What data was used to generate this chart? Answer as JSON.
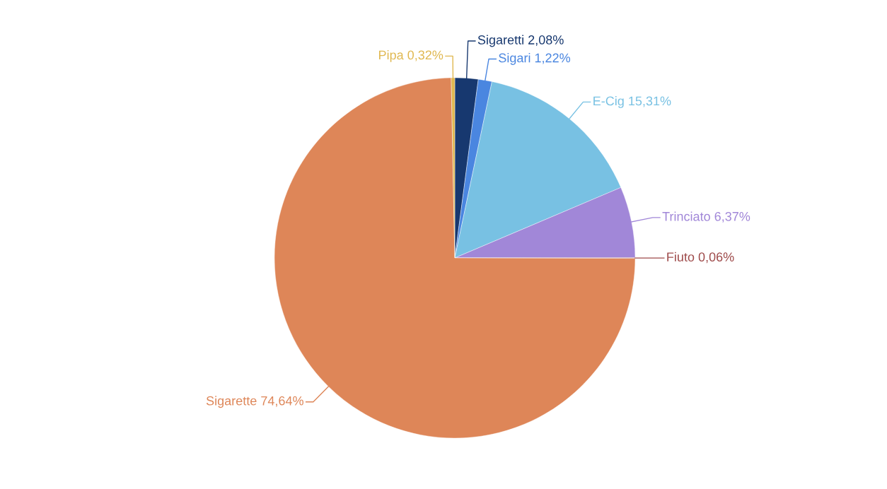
{
  "chart_data": {
    "type": "pie",
    "categories": [
      "Sigaretti",
      "Sigari",
      "E-Cig",
      "Trinciato",
      "Fiuto",
      "Sigarette",
      "Pipa"
    ],
    "values": [
      2.08,
      1.22,
      15.31,
      6.37,
      0.06,
      74.64,
      0.32
    ],
    "value_labels": [
      "2,08%",
      "1,22%",
      "15,31%",
      "6,37%",
      "0,06%",
      "74,64%",
      "0,32%"
    ],
    "colors": [
      "#17386f",
      "#4a86e0",
      "#78c1e3",
      "#a187d8",
      "#9e4a4a",
      "#de8658",
      "#e0b850"
    ],
    "legend": false
  }
}
